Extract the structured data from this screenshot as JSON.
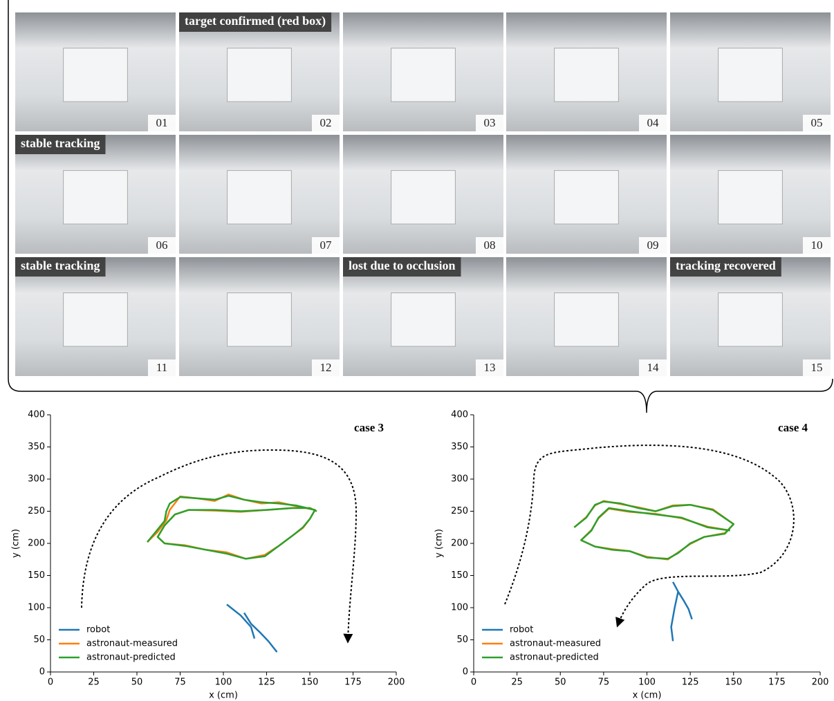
{
  "frames": [
    {
      "number": "01"
    },
    {
      "number": "02",
      "caption": "target confirmed (red box)"
    },
    {
      "number": "03"
    },
    {
      "number": "04"
    },
    {
      "number": "05"
    },
    {
      "number": "06",
      "caption": "stable tracking"
    },
    {
      "number": "07"
    },
    {
      "number": "08"
    },
    {
      "number": "09"
    },
    {
      "number": "10"
    },
    {
      "number": "11",
      "caption": "stable tracking"
    },
    {
      "number": "12"
    },
    {
      "number": "13",
      "caption": "lost due to occlusion"
    },
    {
      "number": "14"
    },
    {
      "number": "15",
      "caption": "tracking recovered"
    }
  ],
  "chart_data": [
    {
      "type": "line",
      "annotation": "case 3",
      "xlabel": "x (cm)",
      "ylabel": "y (cm)",
      "xlim": [
        0,
        200
      ],
      "ylim": [
        0,
        400
      ],
      "xticks": [
        0,
        25,
        50,
        75,
        100,
        125,
        150,
        175,
        200
      ],
      "yticks": [
        0,
        50,
        100,
        150,
        200,
        250,
        300,
        350,
        400
      ],
      "legend": "lower left",
      "series": [
        {
          "name": "robot",
          "color": "#1f77b4",
          "x": [
            102,
            110,
            116,
            118,
            null,
            112,
            116,
            121,
            126,
            131
          ],
          "values": [
            105,
            88,
            70,
            52,
            null,
            92,
            75,
            62,
            48,
            31
          ]
        },
        {
          "name": "astronaut-measured",
          "color": "#ff7f0e",
          "x": [
            56,
            62,
            67,
            69,
            75,
            85,
            95,
            103,
            112,
            122,
            132,
            142,
            153,
            150,
            146,
            140,
            132,
            124,
            113,
            102,
            90,
            78,
            66,
            62,
            66,
            72,
            80,
            95,
            110,
            125,
            140,
            150,
            154
          ],
          "values": [
            202,
            218,
            236,
            252,
            273,
            270,
            266,
            276,
            268,
            262,
            264,
            258,
            252,
            238,
            224,
            212,
            196,
            182,
            176,
            186,
            190,
            197,
            200,
            210,
            228,
            245,
            252,
            251,
            249,
            252,
            255,
            255,
            250
          ]
        },
        {
          "name": "astronaut-predicted",
          "color": "#2ca02c",
          "x": [
            56,
            60,
            66,
            67,
            69,
            75,
            85,
            95,
            103,
            112,
            122,
            132,
            142,
            153,
            150,
            146,
            140,
            132,
            124,
            113,
            102,
            90,
            78,
            66,
            62,
            66,
            72,
            80,
            95,
            110,
            125,
            140,
            150,
            154
          ],
          "values": [
            202,
            215,
            235,
            250,
            262,
            272,
            270,
            268,
            274,
            268,
            264,
            262,
            259,
            252,
            238,
            225,
            212,
            196,
            180,
            176,
            184,
            190,
            196,
            200,
            210,
            228,
            245,
            252,
            252,
            250,
            252,
            255,
            255,
            250
          ]
        }
      ]
    },
    {
      "type": "line",
      "annotation": "case 4",
      "xlabel": "x (cm)",
      "ylabel": "y (cm)",
      "xlim": [
        0,
        200
      ],
      "ylim": [
        0,
        400
      ],
      "xticks": [
        0,
        25,
        50,
        75,
        100,
        125,
        150,
        175,
        200
      ],
      "yticks": [
        0,
        50,
        100,
        150,
        200,
        250,
        300,
        350,
        400
      ],
      "legend": "lower left",
      "series": [
        {
          "name": "robot",
          "color": "#1f77b4",
          "x": [
            115,
            118,
            116,
            114,
            115,
            null,
            118,
            121,
            124,
            126
          ],
          "values": [
            140,
            125,
            100,
            70,
            48,
            null,
            125,
            112,
            98,
            82
          ]
        },
        {
          "name": "astronaut-measured",
          "color": "#ff7f0e",
          "x": [
            58,
            65,
            70,
            75,
            85,
            95,
            105,
            115,
            125,
            138,
            150,
            145,
            133,
            125,
            118,
            112,
            100,
            90,
            80,
            70,
            62,
            68,
            72,
            78,
            90,
            105,
            120,
            135,
            148
          ],
          "values": [
            225,
            241,
            259,
            266,
            261,
            256,
            250,
            259,
            260,
            253,
            230,
            216,
            210,
            199,
            186,
            175,
            179,
            188,
            191,
            195,
            205,
            221,
            239,
            254,
            249,
            246,
            239,
            226,
            220
          ]
        },
        {
          "name": "astronaut-predicted",
          "color": "#2ca02c",
          "x": [
            58,
            65,
            70,
            75,
            85,
            95,
            105,
            115,
            125,
            138,
            150,
            145,
            133,
            125,
            118,
            112,
            100,
            90,
            80,
            70,
            62,
            68,
            72,
            78,
            90,
            105,
            120,
            135,
            148
          ],
          "values": [
            225,
            240,
            260,
            265,
            262,
            255,
            250,
            258,
            260,
            252,
            230,
            215,
            210,
            200,
            185,
            176,
            178,
            188,
            190,
            195,
            205,
            220,
            240,
            255,
            250,
            245,
            240,
            225,
            220
          ]
        }
      ]
    }
  ]
}
